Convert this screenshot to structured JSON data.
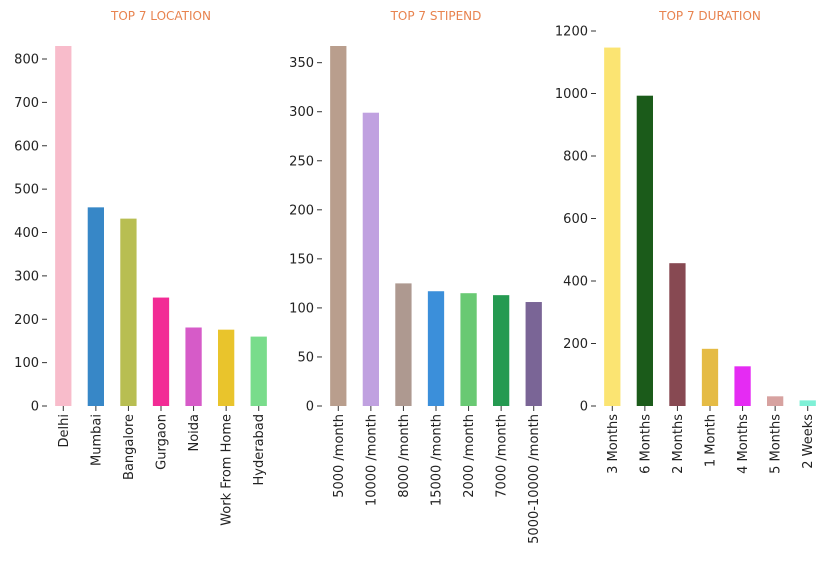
{
  "chart_data": [
    {
      "type": "bar",
      "title": "TOP 7 LOCATION",
      "xlabel": "",
      "ylabel": "",
      "categories": [
        "Delhi",
        "Mumbai",
        "Bangalore",
        "Gurgaon",
        "Noida",
        "Work From Home",
        "Hyderabad"
      ],
      "values": [
        830,
        458,
        432,
        250,
        181,
        176,
        160
      ],
      "colors": [
        "#f8bccb",
        "#3787c7",
        "#b8be52",
        "#f22b95",
        "#d65bc8",
        "#e9c42c",
        "#79dc8b"
      ],
      "ylim": [
        0,
        830
      ],
      "yticks": [
        0,
        100,
        200,
        300,
        400,
        500,
        600,
        700,
        800
      ],
      "grid": false
    },
    {
      "type": "bar",
      "title": "TOP 7 STIPEND",
      "xlabel": "",
      "ylabel": "",
      "categories": [
        "5000 /month",
        "10000 /month",
        "8000 /month",
        "15000 /month",
        "2000 /month",
        "7000 /month",
        "5000-10000 /month"
      ],
      "values": [
        367,
        299,
        125,
        117,
        115,
        113,
        106
      ],
      "colors": [
        "#b99e8d",
        "#c0a1e0",
        "#ae9990",
        "#3b8fda",
        "#69c973",
        "#259a51",
        "#7a6596"
      ],
      "ylim": [
        0,
        367
      ],
      "yticks": [
        0,
        50,
        100,
        150,
        200,
        250,
        300,
        350
      ],
      "grid": false
    },
    {
      "type": "bar",
      "title": "TOP 7 DURATION",
      "xlabel": "",
      "ylabel": "",
      "categories": [
        "3 Months",
        "6 Months",
        "2 Months",
        "1 Month",
        "4 Months",
        "5 Months",
        "2 Weeks"
      ],
      "values": [
        1147,
        993,
        457,
        183,
        127,
        31,
        18
      ],
      "colors": [
        "#fbe472",
        "#1b5b1a",
        "#874952",
        "#e5bb44",
        "#e52bf3",
        "#d7a2a0",
        "#7ff0d6"
      ],
      "ylim": [
        0,
        1200
      ],
      "yticks": [
        0,
        200,
        400,
        600,
        800,
        1000,
        1200
      ],
      "grid": false
    }
  ]
}
